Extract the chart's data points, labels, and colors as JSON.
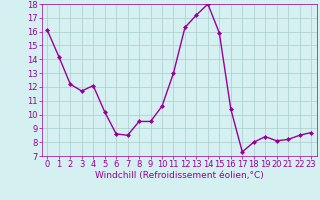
{
  "x": [
    0,
    1,
    2,
    3,
    4,
    5,
    6,
    7,
    8,
    9,
    10,
    11,
    12,
    13,
    14,
    15,
    16,
    17,
    18,
    19,
    20,
    21,
    22,
    23
  ],
  "y": [
    16.1,
    14.2,
    12.2,
    11.7,
    12.1,
    10.2,
    8.6,
    8.5,
    9.5,
    9.5,
    10.6,
    13.0,
    16.3,
    17.2,
    18.0,
    15.9,
    10.4,
    7.3,
    8.0,
    8.4,
    8.1,
    8.2,
    8.5,
    8.7
  ],
  "line_color": "#990099",
  "marker": "D",
  "marker_size": 2.0,
  "bg_color": "#d5f0f0",
  "grid_color": "#aacccc",
  "xlabel": "Windchill (Refroidissement éolien,°C)",
  "xlabel_color": "#990099",
  "tick_color": "#990099",
  "ylim": [
    7,
    18
  ],
  "xlim": [
    -0.5,
    23.5
  ],
  "yticks": [
    7,
    8,
    9,
    10,
    11,
    12,
    13,
    14,
    15,
    16,
    17,
    18
  ],
  "xticks": [
    0,
    1,
    2,
    3,
    4,
    5,
    6,
    7,
    8,
    9,
    10,
    11,
    12,
    13,
    14,
    15,
    16,
    17,
    18,
    19,
    20,
    21,
    22,
    23
  ],
  "line_width": 1.0,
  "tick_fontsize": 6.0,
  "xlabel_fontsize": 6.5
}
